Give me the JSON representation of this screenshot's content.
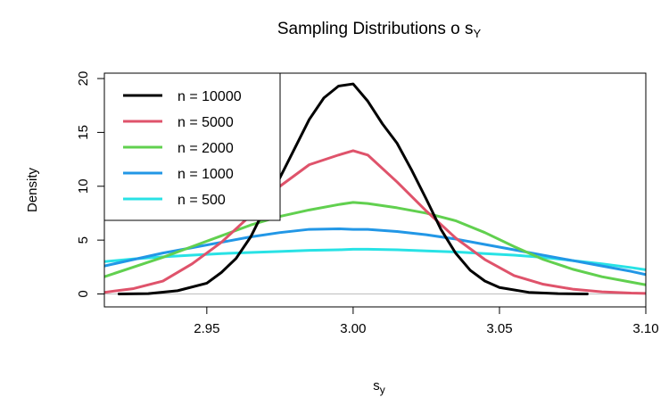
{
  "chart_data": {
    "type": "line",
    "title_main": "Sampling Distributions o s",
    "title_sub": "Y",
    "xlabel_main": "s",
    "xlabel_sub": "y",
    "ylabel": "Density",
    "xlim": [
      2.915,
      3.1
    ],
    "ylim": [
      -1.2,
      20.5
    ],
    "xticks": [
      2.95,
      3.0,
      3.05,
      3.1
    ],
    "xtick_labels": [
      "2.95",
      "3.00",
      "3.05",
      "3.10"
    ],
    "yticks": [
      0,
      5,
      10,
      15,
      20
    ],
    "ytick_labels": [
      "0",
      "5",
      "10",
      "15",
      "20"
    ],
    "legend_position": "top-left",
    "zero_line": true,
    "grid": false,
    "series": [
      {
        "name": "n = 10000",
        "color": "#000000",
        "x": [
          2.92,
          2.93,
          2.94,
          2.95,
          2.955,
          2.96,
          2.965,
          2.97,
          2.975,
          2.98,
          2.985,
          2.99,
          2.995,
          3.0,
          3.005,
          3.01,
          3.015,
          3.02,
          3.025,
          3.03,
          3.035,
          3.04,
          3.045,
          3.05,
          3.06,
          3.07,
          3.08
        ],
        "y": [
          0.0,
          0.03,
          0.3,
          1.0,
          2.0,
          3.3,
          5.3,
          8.0,
          10.8,
          13.5,
          16.2,
          18.2,
          19.3,
          19.5,
          17.9,
          15.8,
          14.0,
          11.5,
          8.8,
          6.0,
          3.8,
          2.2,
          1.2,
          0.6,
          0.15,
          0.03,
          0.0
        ]
      },
      {
        "name": "n = 5000",
        "color": "#DF536B",
        "x": [
          2.915,
          2.925,
          2.935,
          2.945,
          2.955,
          2.965,
          2.975,
          2.985,
          2.995,
          3.0,
          3.005,
          3.015,
          3.025,
          3.035,
          3.045,
          3.055,
          3.065,
          3.075,
          3.085,
          3.095,
          3.1
        ],
        "y": [
          0.15,
          0.5,
          1.2,
          2.8,
          4.8,
          7.3,
          10.0,
          12.0,
          12.9,
          13.3,
          12.9,
          10.4,
          7.7,
          5.2,
          3.2,
          1.7,
          0.9,
          0.45,
          0.2,
          0.08,
          0.05
        ]
      },
      {
        "name": "n = 2000",
        "color": "#61D04F",
        "x": [
          2.915,
          2.925,
          2.935,
          2.945,
          2.955,
          2.965,
          2.975,
          2.985,
          2.995,
          3.0,
          3.005,
          3.015,
          3.025,
          3.035,
          3.045,
          3.055,
          3.065,
          3.075,
          3.085,
          3.095,
          3.1
        ],
        "y": [
          1.6,
          2.5,
          3.4,
          4.4,
          5.4,
          6.4,
          7.2,
          7.8,
          8.3,
          8.5,
          8.4,
          8.0,
          7.5,
          6.8,
          5.7,
          4.4,
          3.2,
          2.3,
          1.6,
          1.1,
          0.85
        ]
      },
      {
        "name": "n = 1000",
        "color": "#2297E6",
        "x": [
          2.915,
          2.925,
          2.935,
          2.945,
          2.955,
          2.965,
          2.975,
          2.985,
          2.995,
          3.0,
          3.005,
          3.015,
          3.025,
          3.035,
          3.045,
          3.055,
          3.065,
          3.075,
          3.085,
          3.095,
          3.1
        ],
        "y": [
          2.6,
          3.2,
          3.8,
          4.3,
          4.8,
          5.3,
          5.7,
          6.0,
          6.05,
          6.0,
          6.0,
          5.8,
          5.5,
          5.1,
          4.6,
          4.1,
          3.6,
          3.1,
          2.6,
          2.1,
          1.8
        ]
      },
      {
        "name": "n = 500",
        "color": "#28E2E5",
        "x": [
          2.915,
          2.925,
          2.935,
          2.945,
          2.955,
          2.965,
          2.975,
          2.985,
          2.995,
          3.0,
          3.005,
          3.015,
          3.025,
          3.035,
          3.045,
          3.055,
          3.065,
          3.075,
          3.085,
          3.095,
          3.1
        ],
        "y": [
          3.0,
          3.25,
          3.45,
          3.6,
          3.75,
          3.85,
          3.95,
          4.05,
          4.1,
          4.15,
          4.15,
          4.1,
          4.0,
          3.9,
          3.75,
          3.6,
          3.4,
          3.1,
          2.8,
          2.45,
          2.25
        ]
      }
    ]
  }
}
